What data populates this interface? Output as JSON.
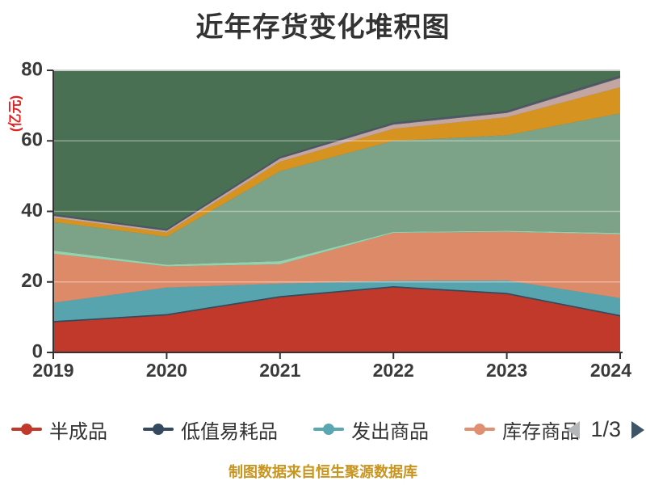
{
  "title": "近年存货变化堆积图",
  "footer": "制图数据来自恒生聚源数据库",
  "y_axis": {
    "title": "(亿元)",
    "ticks": [
      0,
      20,
      40,
      60,
      80
    ],
    "max": 80
  },
  "x_axis": {
    "ticks": [
      "2019",
      "2020",
      "2021",
      "2022",
      "2023",
      "2024"
    ]
  },
  "legend": {
    "items": [
      {
        "label": "半成品",
        "color": "#c0392b"
      },
      {
        "label": "低值易耗品",
        "color": "#34495e"
      },
      {
        "label": "发出商品",
        "color": "#5aa7b1"
      },
      {
        "label": "库存商品",
        "color": "#e09070"
      }
    ],
    "pagination": "1/3"
  },
  "colors": {
    "plot_background": "#497052",
    "grid_line": "rgba(255,255,255,0.38)",
    "top_grid_line": "#cccfcc",
    "axis_line": "#333333",
    "tick_label": "#3a3a3a",
    "accent_red": "#e02222",
    "footer_gold": "#c8951f"
  },
  "chart_data": {
    "type": "area",
    "stacked": true,
    "x": [
      2019,
      2020,
      2021,
      2022,
      2023,
      2024
    ],
    "xlabel": "",
    "ylabel": "(亿元)",
    "ylim": [
      0,
      80
    ],
    "grid": true,
    "legend_position": "bottom",
    "series": [
      {
        "name": "半成品",
        "fill": "#c0392b",
        "values": [
          8.5,
          10.5,
          15.6,
          18.4,
          16.5,
          10.2
        ]
      },
      {
        "name": "低值易耗品",
        "fill": "#34495e",
        "values": [
          0.4,
          0.4,
          0.4,
          0.4,
          0.4,
          0.4
        ]
      },
      {
        "name": "发出商品",
        "fill": "#58a4ae",
        "values": [
          5.2,
          7.5,
          3.5,
          1.5,
          3.5,
          4.8
        ]
      },
      {
        "name": "库存商品",
        "fill": "#dd8a68",
        "values": [
          13.9,
          6.0,
          5.5,
          13.6,
          13.8,
          18.1
        ]
      },
      {
        "name": "",
        "fill": "#93d1af",
        "values": [
          0.9,
          0.5,
          0.9,
          0.3,
          0.3,
          0.4
        ]
      },
      {
        "name": "",
        "fill": "#7ca287",
        "values": [
          8.1,
          7.9,
          25.5,
          25.8,
          27.1,
          33.9
        ]
      },
      {
        "name": "",
        "fill": "#d79320",
        "values": [
          1.2,
          1.2,
          2.7,
          3.4,
          5.1,
          7.4
        ]
      },
      {
        "name": "",
        "fill": "#c3a5a2",
        "values": [
          0.5,
          0.5,
          0.9,
          1.2,
          1.2,
          2.6
        ]
      },
      {
        "name": "",
        "fill": "#5a6370",
        "values": [
          0.3,
          0.3,
          0.3,
          0.4,
          0.4,
          0.5
        ]
      }
    ]
  }
}
